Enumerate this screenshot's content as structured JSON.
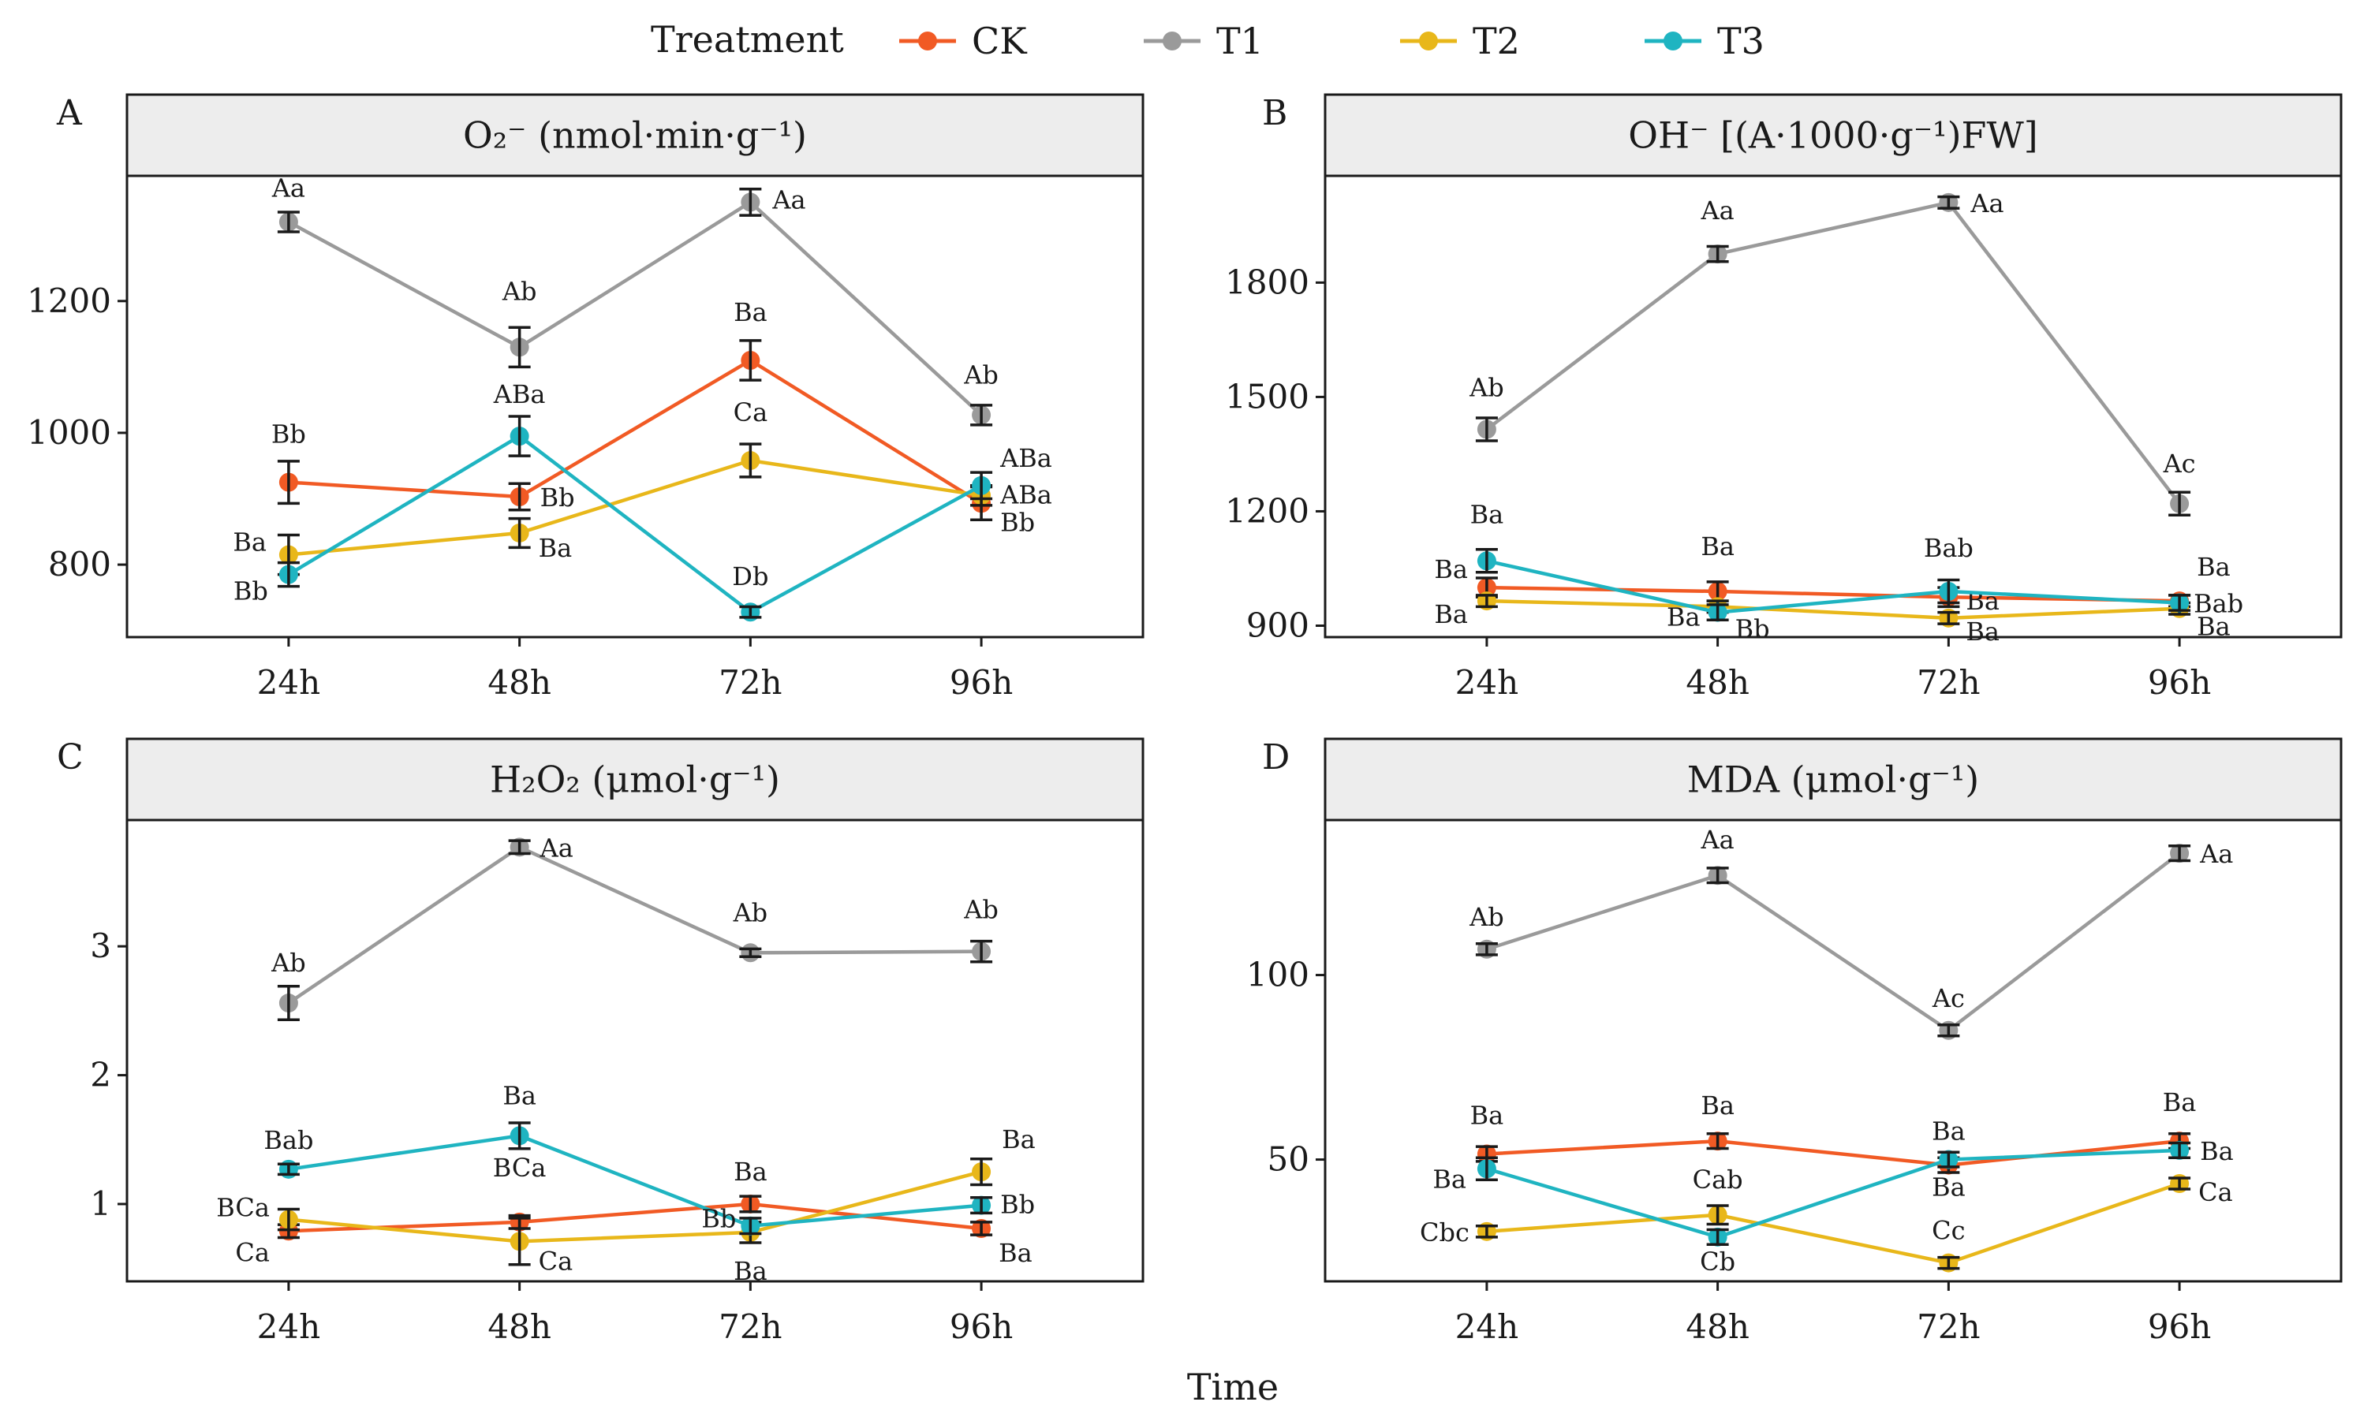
{
  "legend": {
    "title": "Treatment",
    "entries": [
      {
        "name": "CK",
        "color": "#f15a24"
      },
      {
        "name": "T1",
        "color": "#9a9a9a"
      },
      {
        "name": "T2",
        "color": "#e8b71a"
      },
      {
        "name": "T3",
        "color": "#1fb4c1"
      }
    ]
  },
  "x_axis_title": "Time",
  "chart_data": [
    {
      "type": "line",
      "panel": "A",
      "title": "O₂⁻ (nmol·min·g⁻¹)",
      "categories": [
        "24h",
        "48h",
        "72h",
        "96h"
      ],
      "ylim": [
        690,
        1390
      ],
      "yticks": [
        800,
        1000,
        1200
      ],
      "series": [
        {
          "name": "CK",
          "values": [
            925,
            903,
            1110,
            893
          ],
          "errors": [
            32,
            20,
            30,
            25
          ],
          "labels": [
            "Bb",
            "Bb",
            "Ba",
            "Bb"
          ]
        },
        {
          "name": "T1",
          "values": [
            1320,
            1130,
            1350,
            1027
          ],
          "errors": [
            15,
            30,
            20,
            15
          ],
          "labels": [
            "Aa",
            "Ab",
            "Aa",
            "Ab"
          ]
        },
        {
          "name": "T2",
          "values": [
            815,
            848,
            958,
            905
          ],
          "errors": [
            30,
            22,
            25,
            15
          ],
          "labels": [
            "Ba",
            "Ba",
            "Ca",
            "ABa"
          ]
        },
        {
          "name": "T3",
          "values": [
            785,
            995,
            728,
            920
          ],
          "errors": [
            18,
            30,
            8,
            20
          ],
          "labels": [
            "Bb",
            "ABa",
            "Db",
            "ABa"
          ]
        }
      ]
    },
    {
      "type": "line",
      "panel": "B",
      "title": "OH⁻ [(A·1000·g⁻¹)FW]",
      "categories": [
        "24h",
        "48h",
        "72h",
        "96h"
      ],
      "ylim": [
        870,
        2080
      ],
      "yticks": [
        900,
        1200,
        1500,
        1800
      ],
      "series": [
        {
          "name": "CK",
          "values": [
            1000,
            990,
            975,
            965
          ],
          "errors": [
            25,
            25,
            25,
            15
          ],
          "labels": [
            "Ba",
            "Ba",
            "Ba",
            "Ba"
          ]
        },
        {
          "name": "T1",
          "values": [
            1415,
            1875,
            2010,
            1220
          ],
          "errors": [
            30,
            20,
            15,
            30
          ],
          "labels": [
            "Ab",
            "Aa",
            "Aa",
            "Ac"
          ]
        },
        {
          "name": "T2",
          "values": [
            965,
            950,
            920,
            945
          ],
          "errors": [
            15,
            15,
            15,
            15
          ],
          "labels": [
            "Ba",
            "Ba",
            "Ba",
            "Ba"
          ]
        },
        {
          "name": "T3",
          "values": [
            1070,
            935,
            990,
            960
          ],
          "errors": [
            30,
            20,
            30,
            20
          ],
          "labels": [
            "Ba",
            "Bb",
            "Bab",
            "Bab"
          ]
        }
      ]
    },
    {
      "type": "line",
      "panel": "C",
      "title": "H₂O₂ (μmol·g⁻¹)",
      "categories": [
        "24h",
        "48h",
        "72h",
        "96h"
      ],
      "ylim": [
        0.4,
        3.98
      ],
      "yticks": [
        1,
        2,
        3
      ],
      "series": [
        {
          "name": "CK",
          "values": [
            0.79,
            0.86,
            1.0,
            0.81
          ],
          "errors": [
            0.05,
            0.05,
            0.06,
            0.05
          ],
          "labels": [
            "Ca",
            "BCa",
            "Ba",
            "Ba"
          ]
        },
        {
          "name": "T1",
          "values": [
            2.56,
            3.77,
            2.95,
            2.96
          ],
          "errors": [
            0.13,
            0.05,
            0.03,
            0.08
          ],
          "labels": [
            "Ab",
            "Aa",
            "Ab",
            "Ab"
          ]
        },
        {
          "name": "T2",
          "values": [
            0.88,
            0.71,
            0.78,
            1.25
          ],
          "errors": [
            0.08,
            0.18,
            0.08,
            0.1
          ],
          "labels": [
            "BCa",
            "Ca",
            "Ba",
            "Ba"
          ]
        },
        {
          "name": "T3",
          "values": [
            1.27,
            1.53,
            0.83,
            0.99
          ],
          "errors": [
            0.04,
            0.1,
            0.06,
            0.06
          ],
          "labels": [
            "Bab",
            "Ba",
            "Bb",
            "Bb"
          ]
        }
      ]
    },
    {
      "type": "line",
      "panel": "D",
      "title": "MDA (μmol·g⁻¹)",
      "categories": [
        "24h",
        "48h",
        "72h",
        "96h"
      ],
      "ylim": [
        17,
        142
      ],
      "yticks": [
        50,
        100
      ],
      "series": [
        {
          "name": "CK",
          "values": [
            51.5,
            55,
            48.5,
            55
          ],
          "errors": [
            2,
            2,
            2,
            2
          ],
          "labels": [
            "Ba",
            "Ba",
            "Ba",
            "Ba"
          ]
        },
        {
          "name": "T1",
          "values": [
            107,
            127,
            85,
            133
          ],
          "errors": [
            1.5,
            2,
            1.5,
            2
          ],
          "labels": [
            "Ab",
            "Aa",
            "Ac",
            "Aa"
          ]
        },
        {
          "name": "T2",
          "values": [
            30.5,
            35,
            22,
            43.5
          ],
          "errors": [
            1.5,
            2.5,
            1.5,
            1.5
          ],
          "labels": [
            "Cbc",
            "Cab",
            "Cc",
            "Ca"
          ]
        },
        {
          "name": "T3",
          "values": [
            47.5,
            29,
            50,
            52.5
          ],
          "errors": [
            3,
            2,
            2,
            2
          ],
          "labels": [
            "Ba",
            "Cb",
            "Ba",
            "Ba"
          ]
        }
      ]
    }
  ]
}
